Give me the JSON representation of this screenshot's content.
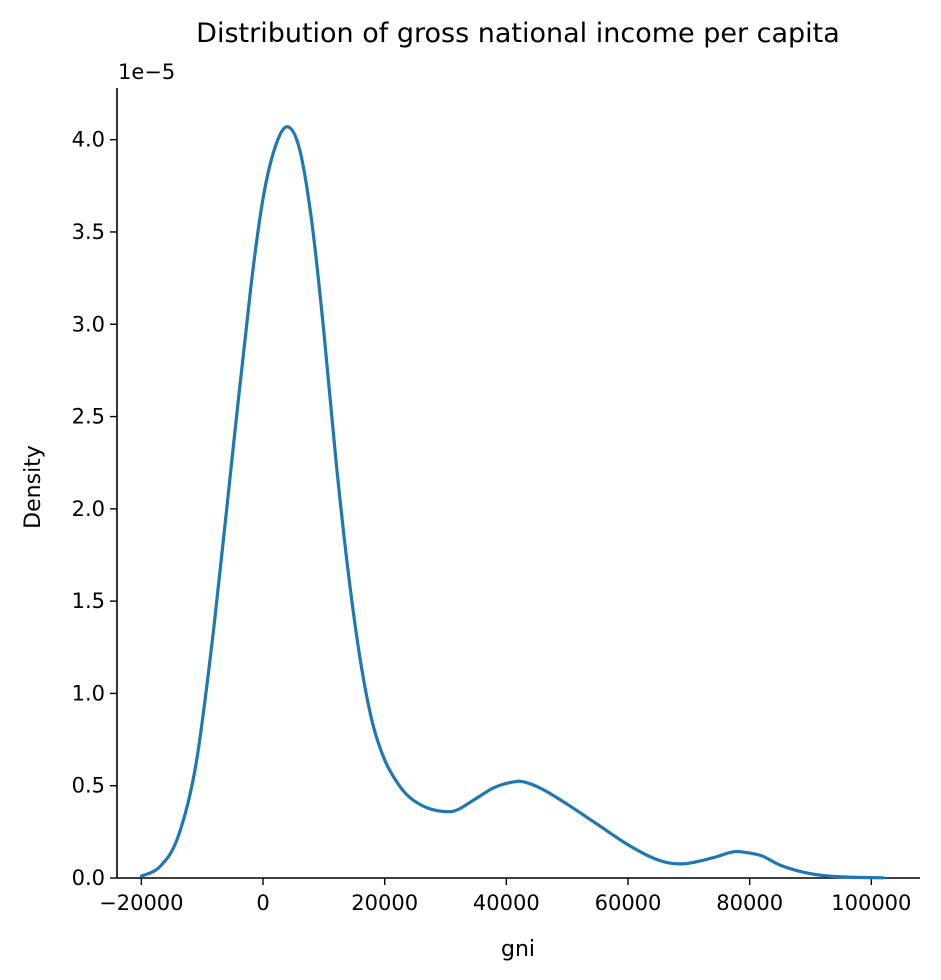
{
  "chart_data": {
    "type": "line",
    "title": "Distribution of gross national income per capita",
    "xlabel": "gni",
    "ylabel": "Density",
    "y_offset_label": "1e−5",
    "xlim": [
      -24000,
      108000
    ],
    "ylim": [
      0,
      4.28
    ],
    "x_ticks": [
      -20000,
      0,
      20000,
      40000,
      60000,
      80000,
      100000
    ],
    "x_tick_labels": [
      "−20000",
      "0",
      "20000",
      "40000",
      "60000",
      "80000",
      "100000"
    ],
    "y_ticks": [
      0,
      0.5,
      1.0,
      1.5,
      2.0,
      2.5,
      3.0,
      3.5,
      4.0
    ],
    "y_tick_labels": [
      "0.0",
      "0.5",
      "1.0",
      "1.5",
      "2.0",
      "2.5",
      "3.0",
      "3.5",
      "4.0"
    ],
    "grid": false,
    "series": [
      {
        "color": "#1f77b4",
        "x": [
          -20000,
          -17000,
          -14000,
          -11000,
          -8000,
          -5000,
          -2000,
          0,
          2000,
          4000,
          6000,
          8000,
          10000,
          12000,
          14000,
          16000,
          18000,
          20000,
          22000,
          24000,
          27000,
          30000,
          32000,
          35000,
          38000,
          41000,
          43000,
          46000,
          50000,
          55000,
          60000,
          64000,
          67000,
          70000,
          74000,
          77000,
          79000,
          82000,
          85000,
          89000,
          93000,
          97000,
          102000
        ],
        "y": [
          0.01,
          0.06,
          0.22,
          0.62,
          1.38,
          2.3,
          3.2,
          3.68,
          3.96,
          4.07,
          3.95,
          3.56,
          2.96,
          2.26,
          1.66,
          1.18,
          0.84,
          0.64,
          0.52,
          0.44,
          0.38,
          0.36,
          0.37,
          0.43,
          0.49,
          0.52,
          0.52,
          0.48,
          0.4,
          0.29,
          0.18,
          0.11,
          0.08,
          0.08,
          0.11,
          0.14,
          0.14,
          0.12,
          0.07,
          0.03,
          0.01,
          0.004,
          0.001
        ]
      }
    ]
  }
}
